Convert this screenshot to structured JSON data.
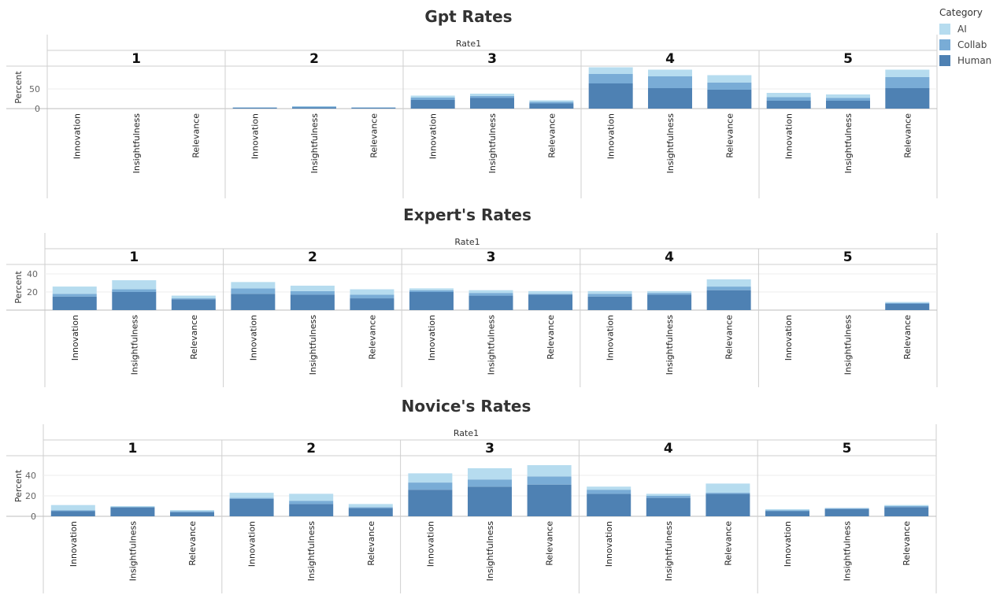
{
  "legend": {
    "title": "Category",
    "items": [
      {
        "label": "AI",
        "color": "#b6dcef"
      },
      {
        "label": "Collab",
        "color": "#79acd6"
      },
      {
        "label": "Human",
        "color": "#4e81b3"
      }
    ]
  },
  "chart_data": [
    {
      "type": "bar",
      "stacked": true,
      "title": "Gpt Rates",
      "facet_label": "Rate1",
      "facets": [
        "1",
        "2",
        "3",
        "4",
        "5"
      ],
      "categories": [
        "Innovation",
        "Insightfulness",
        "Relevance"
      ],
      "ylabel": "Percent",
      "yticks": [
        0,
        50
      ],
      "ylim": [
        0,
        100
      ],
      "series": [
        {
          "name": "Human",
          "values": [
            [
              0,
              0,
              0
            ],
            [
              2,
              3,
              2
            ],
            [
              22,
              27,
              13
            ],
            [
              64,
              52,
              48
            ],
            [
              20,
              20,
              52
            ]
          ]
        },
        {
          "name": "Collab",
          "values": [
            [
              0,
              0,
              0
            ],
            [
              1,
              2,
              1
            ],
            [
              6,
              5,
              4
            ],
            [
              24,
              30,
              18
            ],
            [
              9,
              7,
              28
            ]
          ]
        },
        {
          "name": "AI",
          "values": [
            [
              0,
              0,
              0
            ],
            [
              0,
              1,
              0
            ],
            [
              5,
              6,
              4
            ],
            [
              17,
              17,
              19
            ],
            [
              11,
              9,
              19
            ]
          ]
        }
      ]
    },
    {
      "type": "bar",
      "stacked": true,
      "title": "Expert's Rates",
      "facet_label": "Rate1",
      "facets": [
        "1",
        "2",
        "3",
        "4",
        "5"
      ],
      "categories": [
        "Innovation",
        "Insightfulness",
        "Relevance"
      ],
      "ylabel": "Percent",
      "yticks": [
        20,
        40
      ],
      "ylim": [
        0,
        50
      ],
      "series": [
        {
          "name": "Human",
          "values": [
            [
              15,
              20,
              12
            ],
            [
              18,
              17,
              13
            ],
            [
              20,
              16,
              17
            ],
            [
              15,
              17,
              22
            ],
            [
              0,
              0,
              7
            ]
          ]
        },
        {
          "name": "Collab",
          "values": [
            [
              3,
              3,
              1
            ],
            [
              6,
              4,
              4
            ],
            [
              2,
              3,
              1
            ],
            [
              3,
              2,
              4
            ],
            [
              0,
              0,
              1
            ]
          ]
        },
        {
          "name": "AI",
          "values": [
            [
              8,
              10,
              3
            ],
            [
              7,
              6,
              6
            ],
            [
              2,
              3,
              3
            ],
            [
              3,
              2,
              8
            ],
            [
              0,
              0,
              1
            ]
          ]
        }
      ]
    },
    {
      "type": "bar",
      "stacked": true,
      "title": "Novice's Rates",
      "facet_label": "Rate1",
      "facets": [
        "1",
        "2",
        "3",
        "4",
        "5"
      ],
      "categories": [
        "Innovation",
        "Insightfulness",
        "Relevance"
      ],
      "ylabel": "Percent",
      "yticks": [
        0,
        20,
        40
      ],
      "ylim": [
        0,
        55
      ],
      "series": [
        {
          "name": "Human",
          "values": [
            [
              5,
              9,
              4
            ],
            [
              17,
              12,
              8
            ],
            [
              26,
              29,
              31
            ],
            [
              22,
              18,
              22
            ],
            [
              5,
              7,
              9
            ]
          ]
        },
        {
          "name": "Collab",
          "values": [
            [
              1,
              0,
              1
            ],
            [
              1,
              3,
              1
            ],
            [
              7,
              7,
              8
            ],
            [
              4,
              2,
              1
            ],
            [
              1,
              1,
              1
            ]
          ]
        },
        {
          "name": "AI",
          "values": [
            [
              5,
              1,
              1
            ],
            [
              5,
              7,
              3
            ],
            [
              9,
              11,
              11
            ],
            [
              3,
              2,
              9
            ],
            [
              1,
              0,
              1
            ]
          ]
        }
      ]
    }
  ]
}
